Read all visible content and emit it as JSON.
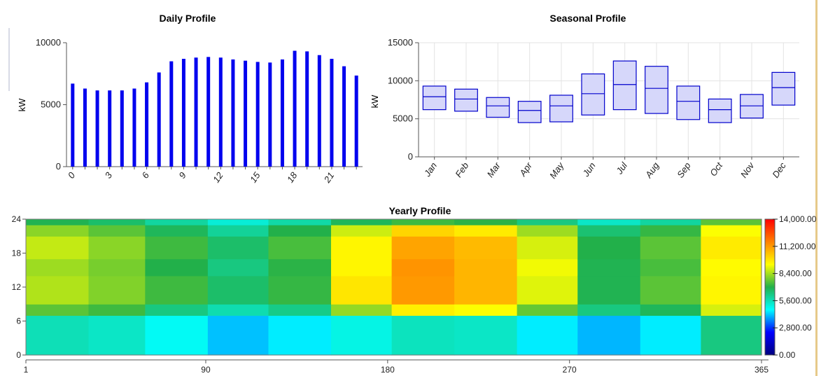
{
  "charts": {
    "daily": {
      "chart_data": {
        "type": "bar",
        "title": "Daily Profile",
        "ylabel": "kW",
        "xlabel": "",
        "x": [
          0,
          1,
          2,
          3,
          4,
          5,
          6,
          7,
          8,
          9,
          10,
          11,
          12,
          13,
          14,
          15,
          16,
          17,
          18,
          19,
          20,
          21,
          22,
          23
        ],
        "values": [
          6700,
          6300,
          6150,
          6150,
          6150,
          6300,
          6800,
          7600,
          8500,
          8700,
          8800,
          8850,
          8800,
          8650,
          8550,
          8450,
          8400,
          8650,
          9350,
          9300,
          9000,
          8700,
          8100,
          7350
        ],
        "ylim": [
          0,
          10000
        ],
        "yticks": [
          "0",
          "5000",
          "10000"
        ],
        "xticks": [
          "0",
          "3",
          "6",
          "9",
          "12",
          "15",
          "18",
          "21"
        ],
        "bar_color": "#0000ee",
        "grid": false
      }
    },
    "seasonal": {
      "chart_data": {
        "type": "box",
        "title": "Seasonal Profile",
        "ylabel": "kW",
        "xlabel": "",
        "categories": [
          "Jan",
          "Feb",
          "Mar",
          "Apr",
          "May",
          "Jun",
          "Jul",
          "Aug",
          "Sep",
          "Oct",
          "Nov",
          "Dec"
        ],
        "boxes": [
          {
            "low": 6200,
            "median": 7900,
            "high": 9300
          },
          {
            "low": 6000,
            "median": 7600,
            "high": 8900
          },
          {
            "low": 5200,
            "median": 6700,
            "high": 7800
          },
          {
            "low": 4500,
            "median": 6100,
            "high": 7300
          },
          {
            "low": 4600,
            "median": 6700,
            "high": 8100
          },
          {
            "low": 5500,
            "median": 8300,
            "high": 10900
          },
          {
            "low": 6200,
            "median": 9500,
            "high": 12600
          },
          {
            "low": 5700,
            "median": 9000,
            "high": 11900
          },
          {
            "low": 4900,
            "median": 7300,
            "high": 9300
          },
          {
            "low": 4500,
            "median": 6200,
            "high": 7600
          },
          {
            "low": 5100,
            "median": 6700,
            "high": 8200
          },
          {
            "low": 6800,
            "median": 9100,
            "high": 11100
          }
        ],
        "ylim": [
          0,
          15000
        ],
        "yticks": [
          "0",
          "5000",
          "10000",
          "15000"
        ],
        "box_fill": "#d6d7fa",
        "box_stroke": "#0000cc",
        "grid": true
      }
    },
    "yearly": {
      "chart_data": {
        "type": "heatmap",
        "title": "Yearly Profile",
        "xlim": [
          1,
          365
        ],
        "ylim": [
          0,
          24
        ],
        "xticks": [
          "1",
          "90",
          "180",
          "270",
          "365"
        ],
        "yticks": [
          "0",
          "6",
          "12",
          "18",
          "24"
        ],
        "month_day_edges": [
          1,
          32,
          60,
          91,
          121,
          152,
          182,
          213,
          244,
          274,
          305,
          335,
          366
        ],
        "hour_bands": [
          [
            0,
            7
          ],
          [
            7,
            9
          ],
          [
            9,
            14
          ],
          [
            14,
            17
          ],
          [
            17,
            21
          ],
          [
            21,
            23
          ],
          [
            23,
            24
          ]
        ],
        "values": [
          [
            5600,
            7600,
            8500,
            8300,
            8700,
            8100,
            6900
          ],
          [
            5400,
            7300,
            8000,
            7900,
            8100,
            7600,
            6600
          ],
          [
            4800,
            6300,
            7300,
            7000,
            7300,
            6800,
            5900
          ],
          [
            4100,
            5700,
            6600,
            6300,
            6600,
            6000,
            5200
          ],
          [
            4500,
            6200,
            7200,
            7100,
            7400,
            7000,
            5800
          ],
          [
            5000,
            8200,
            9800,
            9500,
            9500,
            8800,
            6800
          ],
          [
            5500,
            9600,
            11200,
            11300,
            11000,
            10100,
            7300
          ],
          [
            5400,
            9300,
            10700,
            10700,
            10600,
            9700,
            7100
          ],
          [
            4500,
            7700,
            9000,
            9200,
            8900,
            8300,
            6300
          ],
          [
            4000,
            6300,
            6900,
            6900,
            7000,
            6500,
            5400
          ],
          [
            4500,
            6800,
            7600,
            7400,
            7600,
            7200,
            5900
          ],
          [
            6300,
            8900,
            9500,
            9400,
            9700,
            9300,
            7600
          ]
        ],
        "colorbar": {
          "min": 0,
          "max": 14000,
          "ticks": [
            "0.00",
            "2,800.00",
            "5,600.00",
            "8,400.00",
            "11,200.00",
            "14,000.00"
          ],
          "stops": [
            "#000080",
            "#0000ff",
            "#00ffff",
            "#22b04a",
            "#ffff00",
            "#ff8000",
            "#ff0000"
          ]
        }
      }
    }
  }
}
